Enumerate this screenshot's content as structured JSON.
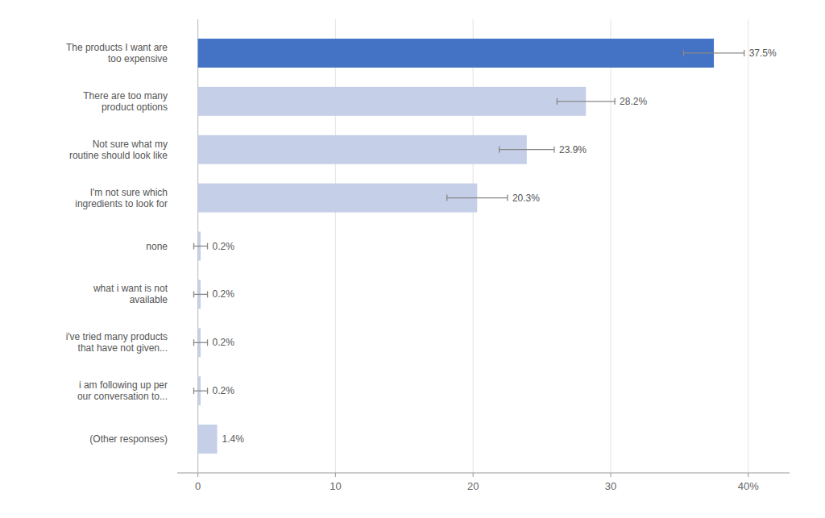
{
  "chart_data": {
    "type": "bar",
    "orientation": "horizontal",
    "categories": [
      "(Other responses)",
      "i am following up per\nour conversation to...",
      "i've tried many products\nthat have not given...",
      "what i want is not\navailable",
      "none",
      "I'm not sure which\ningredients to look for",
      "Not sure what my\nroutine should look like",
      "There are too many\nproduct options",
      "The products I want are\ntoo expensive"
    ],
    "values": [
      1.4,
      0.2,
      0.2,
      0.2,
      0.2,
      20.3,
      23.9,
      28.2,
      37.5
    ],
    "errors": [
      0.0,
      0.5,
      0.5,
      0.5,
      0.5,
      2.2,
      2.0,
      2.1,
      2.2
    ],
    "value_labels": [
      "1.4%",
      "0.2%",
      "0.2%",
      "0.2%",
      "0.2%",
      "20.3%",
      "23.9%",
      "28.2%",
      "37.5%"
    ],
    "data_labels": true,
    "colors": [
      "#c5cfe8",
      "#c5cfe8",
      "#c5cfe8",
      "#c5cfe8",
      "#c5cfe8",
      "#c5cfe8",
      "#c5cfe8",
      "#c5cfe8",
      "#4472c4"
    ],
    "xlim": [
      -1.5,
      43
    ],
    "xticks": [
      0,
      10,
      20,
      30,
      {
        "value": 40,
        "label": "40%"
      }
    ],
    "grid": true
  }
}
